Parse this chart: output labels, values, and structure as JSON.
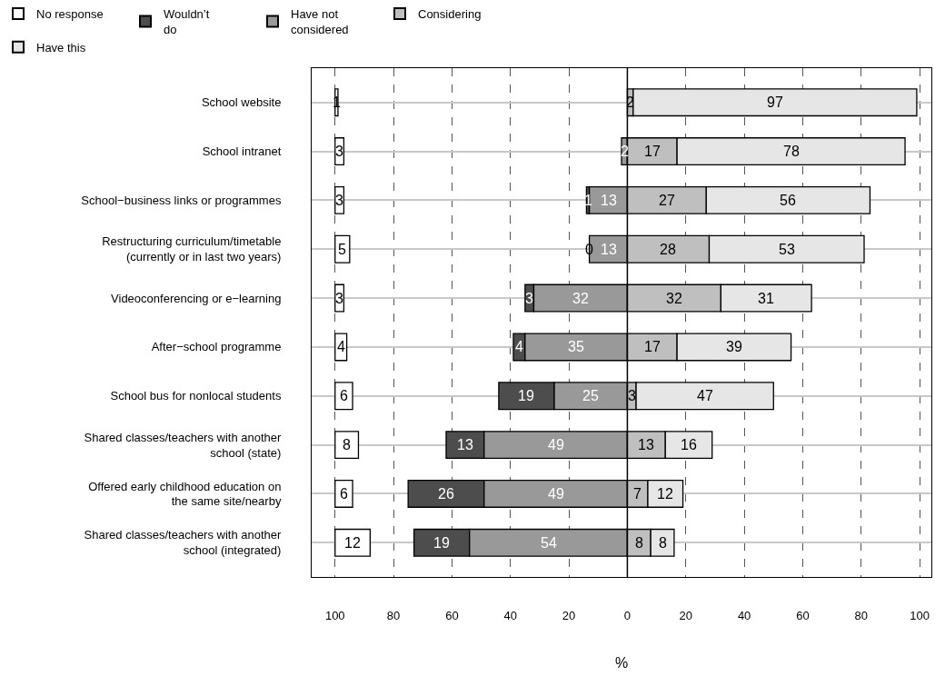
{
  "chart_data": {
    "type": "bar",
    "orientation": "horizontal",
    "xlabel": "%",
    "categories": [
      "School website",
      "School intranet",
      "School−business links or programmes",
      "Restructuring curriculum/timetable\n(currently or in last two years)",
      "Videoconferencing or e−learning",
      "After−school programme",
      "School bus for nonlocal students",
      "Shared classes/teachers with another\nschool (state)",
      "Offered early childhood education on\nthe same site/nearby",
      "Shared classes/teachers with another\nschool (integrated)"
    ],
    "series": [
      {
        "name": "No response",
        "color": "#ffffff",
        "base": [
          -100,
          -100,
          -100,
          -100,
          -100,
          -100,
          -100,
          -100,
          -100,
          -100
        ],
        "values": [
          1,
          3,
          3,
          5,
          3,
          4,
          6,
          8,
          6,
          12
        ],
        "value_labels": [
          "1",
          "3",
          "3",
          "5",
          "3",
          "4",
          "6",
          "8",
          "6",
          "12"
        ]
      },
      {
        "name": "Wouldn’t\ndo",
        "color": "#4d4d4d",
        "base": [
          null,
          null,
          -14,
          -13,
          -35,
          -39,
          -44,
          -62,
          -75,
          -73
        ],
        "values": [
          null,
          null,
          1,
          0,
          3,
          4,
          19,
          13,
          26,
          19
        ],
        "value_labels": [
          null,
          null,
          "1",
          "0",
          "3",
          "4",
          "19",
          "13",
          "26",
          "19"
        ]
      },
      {
        "name": "Have not\nconsidered",
        "color": "#999999",
        "base": [
          null,
          -2,
          -13,
          -13,
          -32,
          -35,
          -25,
          -49,
          -49,
          -54
        ],
        "values": [
          null,
          2,
          13,
          13,
          32,
          35,
          25,
          49,
          49,
          54
        ],
        "value_labels": [
          null,
          "2",
          "13",
          "13",
          "32",
          "35",
          "25",
          "49",
          "49",
          "54"
        ]
      },
      {
        "name": "Considering",
        "color": "#bfbfbf",
        "base": [
          0,
          0,
          0,
          0,
          0,
          0,
          0,
          0,
          0,
          0
        ],
        "values": [
          2,
          17,
          27,
          28,
          32,
          17,
          3,
          13,
          7,
          8
        ],
        "value_labels": [
          "2",
          "17",
          "27",
          "28",
          "32",
          "17",
          "3",
          "13",
          "7",
          "8"
        ]
      },
      {
        "name": "Have this",
        "color": "#e6e6e6",
        "base": [
          2,
          17,
          27,
          28,
          32,
          17,
          3,
          13,
          7,
          8
        ],
        "values": [
          97,
          78,
          56,
          53,
          31,
          39,
          47,
          16,
          12,
          8
        ],
        "value_labels": [
          "97",
          "78",
          "56",
          "53",
          "31",
          "39",
          "47",
          "16",
          "12",
          "8"
        ]
      }
    ],
    "xlim": [
      -108,
      104
    ],
    "xticks": [
      {
        "value": -100,
        "label": "100"
      },
      {
        "value": -80,
        "label": "80"
      },
      {
        "value": -60,
        "label": "60"
      },
      {
        "value": -40,
        "label": "40"
      },
      {
        "value": -20,
        "label": "20"
      },
      0,
      20,
      40,
      60,
      80,
      100
    ],
    "ref_lines": [
      {
        "axis": "x",
        "value": 0,
        "color": "#000000"
      }
    ],
    "grid": true,
    "legend": "top"
  }
}
